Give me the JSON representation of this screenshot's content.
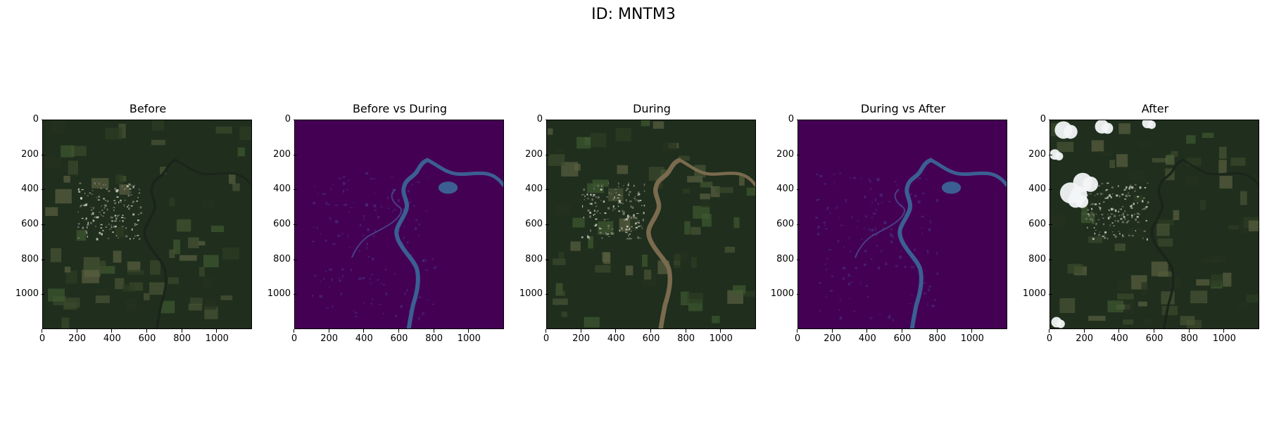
{
  "figure": {
    "suptitle": "ID: MNTM3"
  },
  "panels": [
    {
      "title": "Before",
      "kind": "satellite"
    },
    {
      "title": "Before vs During",
      "kind": "diff"
    },
    {
      "title": "During",
      "kind": "satellite"
    },
    {
      "title": "During vs After",
      "kind": "diff"
    },
    {
      "title": "After",
      "kind": "satellite"
    }
  ],
  "axes": {
    "yticks": [
      "0",
      "200",
      "400",
      "600",
      "800",
      "1000"
    ],
    "xticks": [
      "0",
      "200",
      "400",
      "600",
      "800",
      "1000"
    ],
    "extent": [
      0,
      1200
    ]
  },
  "colors": {
    "land_dark": "#1f2e1d",
    "land_mid": "#2f4226",
    "diff_bg": "#440154",
    "diff_water": "#3b5f92",
    "flood_water": "#7a6a4e",
    "cloud": "#f2f4f6"
  }
}
